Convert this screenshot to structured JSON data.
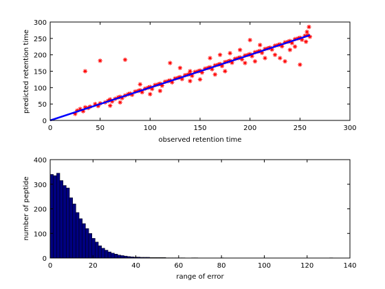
{
  "chart_data": [
    {
      "type": "scatter",
      "title": "",
      "xlabel": "observed retention time",
      "ylabel": "predicted retention time",
      "xlim": [
        0,
        300
      ],
      "ylim": [
        0,
        300
      ],
      "xticks": [
        0,
        50,
        100,
        150,
        200,
        250,
        300
      ],
      "yticks": [
        0,
        50,
        100,
        150,
        200,
        250,
        300
      ],
      "grid": false,
      "colors": {
        "points": "#ff0000",
        "fit_line": "#0000ff"
      },
      "marker": "asterisk",
      "fit_line": {
        "x": [
          0,
          260
        ],
        "y": [
          0,
          260
        ]
      },
      "points": [
        [
          25,
          20
        ],
        [
          27,
          30
        ],
        [
          30,
          35
        ],
        [
          33,
          28
        ],
        [
          35,
          40
        ],
        [
          38,
          38
        ],
        [
          40,
          42
        ],
        [
          45,
          50
        ],
        [
          48,
          44
        ],
        [
          50,
          52
        ],
        [
          55,
          55
        ],
        [
          58,
          60
        ],
        [
          60,
          64
        ],
        [
          62,
          58
        ],
        [
          65,
          66
        ],
        [
          68,
          70
        ],
        [
          70,
          72
        ],
        [
          72,
          68
        ],
        [
          75,
          76
        ],
        [
          78,
          80
        ],
        [
          80,
          82
        ],
        [
          82,
          78
        ],
        [
          85,
          88
        ],
        [
          88,
          90
        ],
        [
          90,
          92
        ],
        [
          92,
          86
        ],
        [
          95,
          97
        ],
        [
          98,
          100
        ],
        [
          100,
          102
        ],
        [
          102,
          96
        ],
        [
          105,
          108
        ],
        [
          108,
          110
        ],
        [
          110,
          112
        ],
        [
          112,
          106
        ],
        [
          115,
          118
        ],
        [
          118,
          120
        ],
        [
          120,
          122
        ],
        [
          122,
          116
        ],
        [
          125,
          128
        ],
        [
          128,
          130
        ],
        [
          130,
          132
        ],
        [
          132,
          126
        ],
        [
          135,
          138
        ],
        [
          138,
          140
        ],
        [
          140,
          142
        ],
        [
          142,
          136
        ],
        [
          145,
          148
        ],
        [
          148,
          150
        ],
        [
          150,
          152
        ],
        [
          152,
          146
        ],
        [
          155,
          158
        ],
        [
          158,
          160
        ],
        [
          160,
          162
        ],
        [
          162,
          156
        ],
        [
          165,
          168
        ],
        [
          168,
          170
        ],
        [
          170,
          172
        ],
        [
          172,
          166
        ],
        [
          175,
          178
        ],
        [
          178,
          180
        ],
        [
          180,
          182
        ],
        [
          182,
          176
        ],
        [
          185,
          188
        ],
        [
          188,
          190
        ],
        [
          190,
          192
        ],
        [
          192,
          186
        ],
        [
          195,
          198
        ],
        [
          198,
          200
        ],
        [
          200,
          202
        ],
        [
          202,
          196
        ],
        [
          205,
          208
        ],
        [
          208,
          210
        ],
        [
          210,
          212
        ],
        [
          212,
          206
        ],
        [
          215,
          218
        ],
        [
          218,
          220
        ],
        [
          220,
          222
        ],
        [
          222,
          216
        ],
        [
          225,
          228
        ],
        [
          228,
          230
        ],
        [
          230,
          232
        ],
        [
          232,
          226
        ],
        [
          235,
          238
        ],
        [
          238,
          240
        ],
        [
          240,
          242
        ],
        [
          242,
          236
        ],
        [
          245,
          248
        ],
        [
          248,
          250
        ],
        [
          250,
          252
        ],
        [
          252,
          246
        ],
        [
          255,
          258
        ],
        [
          258,
          260
        ],
        [
          260,
          255
        ],
        [
          257,
          270
        ],
        [
          259,
          285
        ],
        [
          256,
          240
        ],
        [
          35,
          150
        ],
        [
          50,
          182
        ],
        [
          75,
          185
        ],
        [
          120,
          175
        ],
        [
          140,
          150
        ],
        [
          200,
          245
        ],
        [
          210,
          230
        ],
        [
          230,
          190
        ],
        [
          235,
          180
        ],
        [
          250,
          170
        ],
        [
          90,
          110
        ],
        [
          130,
          160
        ],
        [
          160,
          190
        ],
        [
          170,
          200
        ],
        [
          180,
          205
        ],
        [
          190,
          215
        ],
        [
          100,
          80
        ],
        [
          110,
          90
        ],
        [
          140,
          120
        ],
        [
          150,
          125
        ],
        [
          165,
          140
        ],
        [
          175,
          150
        ],
        [
          195,
          175
        ],
        [
          205,
          180
        ],
        [
          215,
          190
        ],
        [
          225,
          200
        ],
        [
          240,
          215
        ],
        [
          245,
          225
        ],
        [
          60,
          45
        ],
        [
          70,
          55
        ]
      ]
    },
    {
      "type": "bar",
      "title": "",
      "xlabel": "range of error",
      "ylabel": "number of peptide",
      "xlim": [
        0,
        140
      ],
      "ylim": [
        0,
        400
      ],
      "xticks": [
        0,
        20,
        40,
        60,
        80,
        100,
        120,
        140
      ],
      "yticks": [
        0,
        100,
        200,
        300,
        400
      ],
      "grid": false,
      "colors": {
        "bars": "#000080",
        "edges": "#000000"
      },
      "bin_width": 1.5,
      "bin_start": 0,
      "values": [
        340,
        335,
        345,
        315,
        295,
        285,
        245,
        220,
        185,
        160,
        140,
        120,
        100,
        80,
        65,
        50,
        40,
        32,
        25,
        20,
        16,
        12,
        10,
        8,
        6,
        5,
        4,
        4,
        3,
        3,
        3,
        2,
        2,
        2,
        2,
        2,
        1,
        1,
        1,
        1,
        1,
        1,
        0,
        0,
        1,
        1,
        0,
        0,
        0,
        0,
        0,
        0,
        0,
        1,
        0,
        0,
        0,
        0,
        0,
        0,
        0,
        0,
        0,
        0,
        0,
        0,
        0,
        0,
        0,
        0,
        0,
        0,
        0,
        0,
        0,
        0,
        0,
        0,
        0,
        0,
        0,
        0,
        0,
        0,
        0,
        0,
        0,
        1
      ]
    }
  ]
}
